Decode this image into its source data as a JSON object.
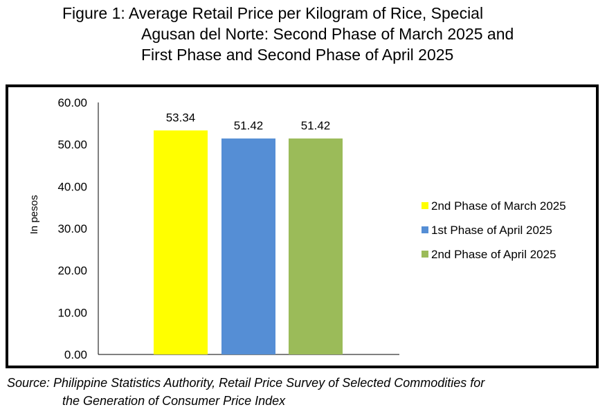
{
  "figure": {
    "title_lines": [
      "Figure 1: Average Retail Price per Kilogram of Rice, Special",
      "Agusan del Norte: Second Phase of March 2025 and",
      "First Phase and Second Phase of April 2025"
    ]
  },
  "source": {
    "lines": [
      "Source: Philippine Statistics Authority, Retail Price Survey of Selected Commodities for",
      "the Generation of Consumer Price Index"
    ]
  },
  "chart_data": {
    "type": "bar",
    "title": "Figure 1: Average Retail Price per Kilogram of Rice, Special Agusan del Norte: Second Phase of March 2025 and First Phase and Second Phase of April 2025",
    "xlabel": "",
    "ylabel": "In pesos",
    "ylim": [
      0,
      60
    ],
    "yticks": [
      "0.00",
      "10.00",
      "20.00",
      "30.00",
      "40.00",
      "50.00",
      "60.00"
    ],
    "grid": false,
    "legend_position": "right",
    "series": [
      {
        "name": "2nd Phase of March 2025",
        "value": 53.34,
        "label": "53.34",
        "color": "#FFFF00"
      },
      {
        "name": "1st Phase of April 2025",
        "value": 51.42,
        "label": "51.42",
        "color": "#558ED5"
      },
      {
        "name": "2nd Phase of April 2025",
        "value": 51.42,
        "label": "51.42",
        "color": "#9BBB59"
      }
    ]
  }
}
